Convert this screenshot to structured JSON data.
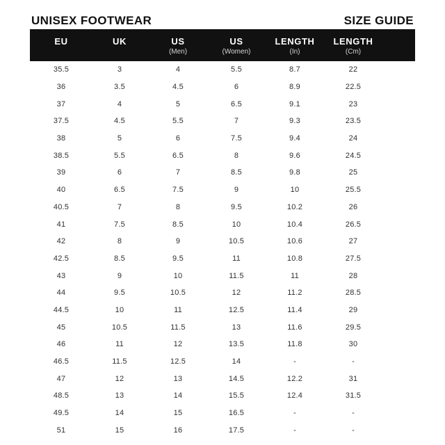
{
  "page": {
    "title_left": "UNISEX FOOTWEAR",
    "title_right": "SIZE GUIDE"
  },
  "table": {
    "columns": [
      {
        "label": "EU",
        "sub": ""
      },
      {
        "label": "UK",
        "sub": ""
      },
      {
        "label": "US",
        "sub": "(Men)"
      },
      {
        "label": "US",
        "sub": "(Women)"
      },
      {
        "label": "LENGTH",
        "sub": "(In)"
      },
      {
        "label": "LENGTH",
        "sub": "(Cm)"
      }
    ],
    "rows": [
      [
        "35.5",
        "3",
        "4",
        "5.5",
        "8.7",
        "22"
      ],
      [
        "36",
        "3.5",
        "4.5",
        "6",
        "8.9",
        "22.5"
      ],
      [
        "37",
        "4",
        "5",
        "6.5",
        "9.1",
        "23"
      ],
      [
        "37.5",
        "4.5",
        "5.5",
        "7",
        "9.3",
        "23.5"
      ],
      [
        "38",
        "5",
        "6",
        "7.5",
        "9.4",
        "24"
      ],
      [
        "38.5",
        "5.5",
        "6.5",
        "8",
        "9.6",
        "24.5"
      ],
      [
        "39",
        "6",
        "7",
        "8.5",
        "9.8",
        "25"
      ],
      [
        "40",
        "6.5",
        "7.5",
        "9",
        "10",
        "25.5"
      ],
      [
        "40.5",
        "7",
        "8",
        "9.5",
        "10.2",
        "26"
      ],
      [
        "41",
        "7.5",
        "8.5",
        "10",
        "10.4",
        "26.5"
      ],
      [
        "42",
        "8",
        "9",
        "10.5",
        "10.6",
        "27"
      ],
      [
        "42.5",
        "8.5",
        "9.5",
        "11",
        "10.8",
        "27.5"
      ],
      [
        "43",
        "9",
        "10",
        "11.5",
        "11",
        "28"
      ],
      [
        "44",
        "9.5",
        "10.5",
        "12",
        "11.2",
        "28.5"
      ],
      [
        "44.5",
        "10",
        "11",
        "12.5",
        "11.4",
        "29"
      ],
      [
        "45",
        "10.5",
        "11.5",
        "13",
        "11.6",
        "29.5"
      ],
      [
        "46",
        "11",
        "12",
        "13.5",
        "11.8",
        "30"
      ],
      [
        "46.5",
        "11.5",
        "12.5",
        "14",
        "-",
        "-"
      ],
      [
        "47",
        "12",
        "13",
        "14.5",
        "12.2",
        "31"
      ],
      [
        "48.5",
        "13",
        "14",
        "15.5",
        "12.4",
        "31.5"
      ],
      [
        "49.5",
        "14",
        "15",
        "16.5",
        "-",
        "-"
      ],
      [
        "51",
        "15",
        "16",
        "17.5",
        "-",
        "-"
      ]
    ]
  },
  "colors": {
    "page_bg": "#ffffff",
    "header_bg": "#111111",
    "header_label": "#ffffff",
    "header_sublabel": "#d6d6d6",
    "title_text": "#111111",
    "body_text": "#303030"
  }
}
